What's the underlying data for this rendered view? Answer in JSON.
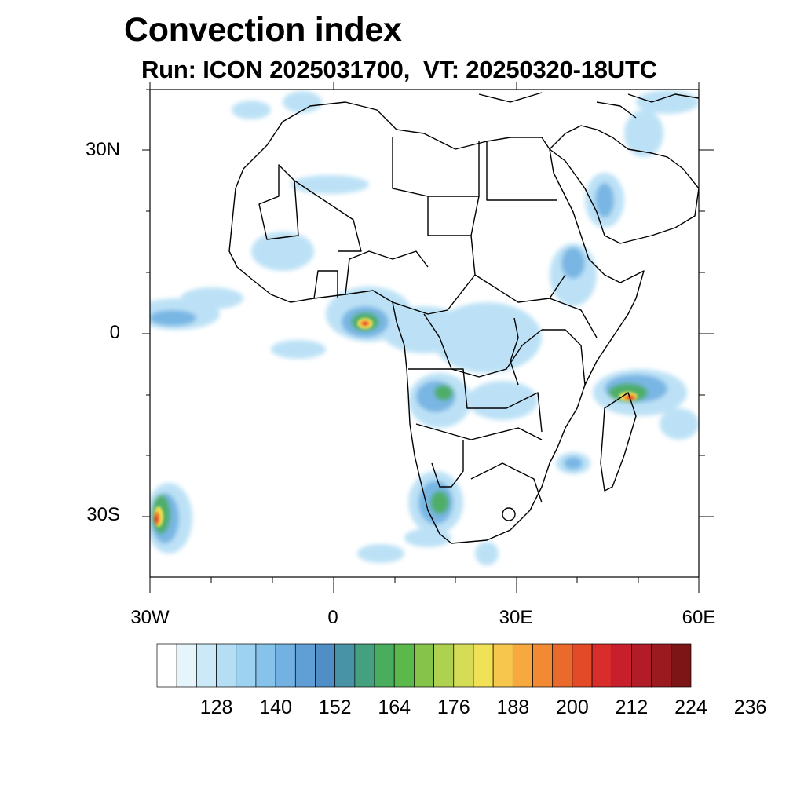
{
  "title": "Convection index",
  "subtitle": "Run: ICON 2025031700,  VT: 20250320-18UTC",
  "map": {
    "region": "Africa",
    "lon_range": [
      -30,
      60
    ],
    "lat_range": [
      -40,
      40
    ],
    "lat_ticks": [
      {
        "value": 30,
        "label": "30N"
      },
      {
        "value": 0,
        "label": "0"
      },
      {
        "value": -30,
        "label": "30S"
      }
    ],
    "lon_ticks": [
      {
        "value": -30,
        "label": "30W"
      },
      {
        "value": 0,
        "label": "0"
      },
      {
        "value": 30,
        "label": "30E"
      },
      {
        "value": 60,
        "label": "60E"
      }
    ]
  },
  "colorbar": {
    "labels": [
      "128",
      "140",
      "152",
      "164",
      "176",
      "188",
      "200",
      "212",
      "224",
      "236"
    ],
    "colors": [
      "#ffffff",
      "#e6f4fb",
      "#cce9f7",
      "#b5def5",
      "#9dd2f1",
      "#86c2ea",
      "#72b1e2",
      "#5f9fd6",
      "#4f8fc5",
      "#4993a6",
      "#45a07e",
      "#48ad5c",
      "#5bb84a",
      "#85c34b",
      "#aed150",
      "#d5dc55",
      "#f0e157",
      "#f7c64c",
      "#f7a83f",
      "#f28a33",
      "#ea6a2b",
      "#e24a28",
      "#d82d2a",
      "#c7202c",
      "#b21c28",
      "#9a1a20",
      "#7d1416"
    ]
  }
}
